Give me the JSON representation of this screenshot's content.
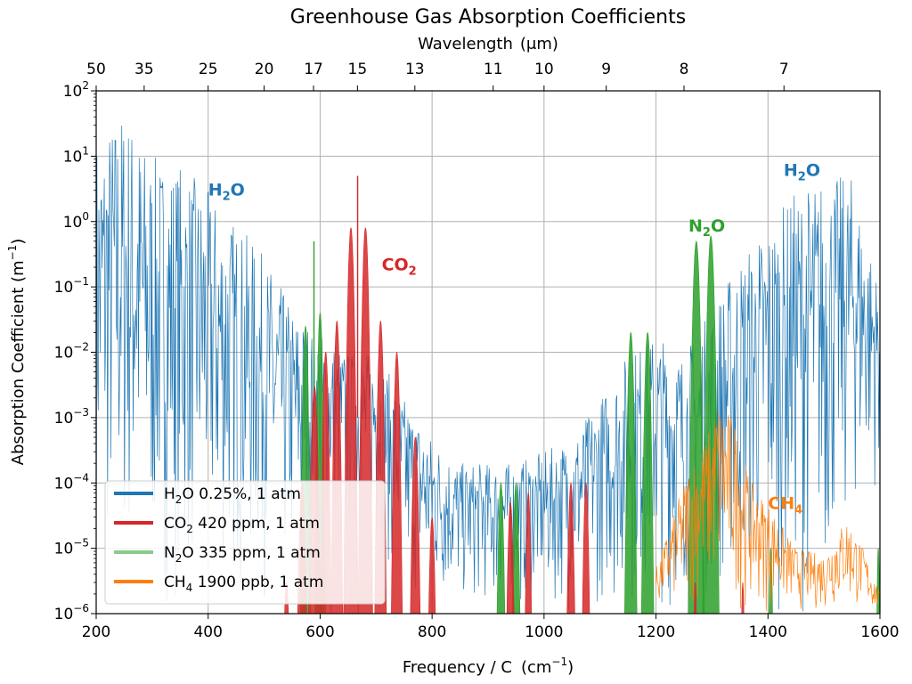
{
  "chart_data": {
    "type": "line",
    "title": "Greenhouse Gas Absorption Coefficients",
    "xlabel": "Frequency / C",
    "xlabel_unit": "(cm",
    "xlabel_unit_exp": "−1",
    "xlabel_unit_close": ")",
    "top_axis_label": "Wavelength",
    "top_axis_unit": "(μm)",
    "ylabel": "Absorption Coefficient (m",
    "ylabel_exp": "−1",
    "ylabel_close": ")",
    "xlim": [
      200,
      1600
    ],
    "ylim": [
      1e-06,
      100
    ],
    "yscale": "log",
    "grid": true,
    "legend_position": "lower-left",
    "x_ticks": [
      200,
      400,
      600,
      800,
      1000,
      1200,
      1400,
      1600
    ],
    "y_ticks": [
      {
        "base": "10",
        "exp": "−6",
        "value": 1e-06
      },
      {
        "base": "10",
        "exp": "−5",
        "value": 1e-05
      },
      {
        "base": "10",
        "exp": "−4",
        "value": 0.0001
      },
      {
        "base": "10",
        "exp": "−3",
        "value": 0.001
      },
      {
        "base": "10",
        "exp": "−2",
        "value": 0.01
      },
      {
        "base": "10",
        "exp": "−1",
        "value": 0.1
      },
      {
        "base": "10",
        "exp": "0",
        "value": 1
      },
      {
        "base": "10",
        "exp": "1",
        "value": 10
      },
      {
        "base": "10",
        "exp": "2",
        "value": 100
      }
    ],
    "top_ticks": [
      {
        "label": "50",
        "wavelength": 50
      },
      {
        "label": "35",
        "wavelength": 35
      },
      {
        "label": "25",
        "wavelength": 25
      },
      {
        "label": "20",
        "wavelength": 20
      },
      {
        "label": "17",
        "wavelength": 17
      },
      {
        "label": "15",
        "wavelength": 15
      },
      {
        "label": "13",
        "wavelength": 13
      },
      {
        "label": "11",
        "wavelength": 11
      },
      {
        "label": "10",
        "wavelength": 10
      },
      {
        "label": "9",
        "wavelength": 9
      },
      {
        "label": "8",
        "wavelength": 8
      },
      {
        "label": "7",
        "wavelength": 7
      }
    ],
    "series": [
      {
        "name": "H₂O 0.25%, 1 atm",
        "legend_parts": [
          "H",
          "2",
          "O 0.25%, 1 atm"
        ],
        "color": "#1f77b4",
        "style": "dense-line",
        "envelope": [
          {
            "x": 200,
            "top": 20,
            "floor": 1e-06
          },
          {
            "x": 250,
            "top": 60,
            "floor": 1e-06
          },
          {
            "x": 300,
            "top": 10,
            "floor": 1e-06
          },
          {
            "x": 350,
            "top": 8,
            "floor": 1e-06
          },
          {
            "x": 400,
            "top": 3,
            "floor": 1e-06
          },
          {
            "x": 450,
            "top": 1,
            "floor": 1e-06
          },
          {
            "x": 500,
            "top": 0.3,
            "floor": 1e-06
          },
          {
            "x": 550,
            "top": 0.05,
            "floor": 1e-06
          },
          {
            "x": 600,
            "top": 0.02,
            "floor": 1e-05
          },
          {
            "x": 650,
            "top": 0.01,
            "floor": 1e-05
          },
          {
            "x": 700,
            "top": 0.01,
            "floor": 1e-05
          },
          {
            "x": 750,
            "top": 0.002,
            "floor": 1e-06
          },
          {
            "x": 800,
            "top": 0.0005,
            "floor": 1e-06
          },
          {
            "x": 850,
            "top": 0.0002,
            "floor": 1e-06
          },
          {
            "x": 900,
            "top": 0.0002,
            "floor": 1e-06
          },
          {
            "x": 950,
            "top": 0.0002,
            "floor": 1e-06
          },
          {
            "x": 1000,
            "top": 0.0003,
            "floor": 1e-06
          },
          {
            "x": 1050,
            "top": 0.0005,
            "floor": 1e-06
          },
          {
            "x": 1100,
            "top": 0.002,
            "floor": 1e-06
          },
          {
            "x": 1150,
            "top": 0.01,
            "floor": 1e-06
          },
          {
            "x": 1200,
            "top": 0.02,
            "floor": 1e-06
          },
          {
            "x": 1250,
            "top": 0.01,
            "floor": 1e-06
          },
          {
            "x": 1300,
            "top": 0.05,
            "floor": 1e-06
          },
          {
            "x": 1350,
            "top": 0.3,
            "floor": 1e-06
          },
          {
            "x": 1400,
            "top": 1,
            "floor": 1e-06
          },
          {
            "x": 1450,
            "top": 3,
            "floor": 1e-06
          },
          {
            "x": 1500,
            "top": 5,
            "floor": 1e-06
          },
          {
            "x": 1550,
            "top": 5,
            "floor": 1e-05
          },
          {
            "x": 1600,
            "top": 0.1,
            "floor": 0.0001
          }
        ]
      },
      {
        "name": "CO₂ 420 ppm, 1 atm",
        "legend_parts": [
          "CO",
          "2",
          " 420 ppm, 1 atm"
        ],
        "color": "#d62728",
        "style": "band",
        "bands": [
          {
            "center": 540,
            "width": 12,
            "peak": 3e-06
          },
          {
            "center": 568,
            "width": 14,
            "peak": 0.0001
          },
          {
            "center": 590,
            "width": 14,
            "peak": 0.003
          },
          {
            "center": 610,
            "width": 12,
            "peak": 0.01
          },
          {
            "center": 630,
            "width": 12,
            "peak": 0.03
          },
          {
            "center": 655,
            "width": 13,
            "peak": 0.8
          },
          {
            "center": 681,
            "width": 13,
            "peak": 0.8
          },
          {
            "center": 708,
            "width": 12,
            "peak": 0.03
          },
          {
            "center": 737,
            "width": 12,
            "peak": 0.01
          },
          {
            "center": 770,
            "width": 13,
            "peak": 0.0005
          },
          {
            "center": 800,
            "width": 12,
            "peak": 3e-05
          },
          {
            "center": 940,
            "width": 12,
            "peak": 5e-05
          },
          {
            "center": 972,
            "width": 10,
            "peak": 7e-05
          },
          {
            "center": 1048,
            "width": 12,
            "peak": 0.0001
          },
          {
            "center": 1075,
            "width": 11,
            "peak": 0.0001
          },
          {
            "center": 1270,
            "width": 7,
            "peak": 3e-06
          },
          {
            "center": 1355,
            "width": 7,
            "peak": 3e-06
          }
        ],
        "spike": {
          "x": 667,
          "value": 5
        }
      },
      {
        "name": "N₂O 335 ppm, 1 atm",
        "legend_parts": [
          "N",
          "2",
          "O 335 ppm, 1 atm"
        ],
        "color": "#2ca02c",
        "style": "band",
        "bands": [
          {
            "center": 574,
            "width": 11,
            "peak": 0.025
          },
          {
            "center": 600,
            "width": 11,
            "peak": 0.04
          },
          {
            "center": 923,
            "width": 12,
            "peak": 0.0001
          },
          {
            "center": 950,
            "width": 12,
            "peak": 0.0001
          },
          {
            "center": 1155,
            "width": 13,
            "peak": 0.02
          },
          {
            "center": 1185,
            "width": 13,
            "peak": 0.02
          },
          {
            "center": 1272,
            "width": 15,
            "peak": 0.5
          },
          {
            "center": 1298,
            "width": 15,
            "peak": 0.6
          },
          {
            "center": 1405,
            "width": 8,
            "peak": 1e-05
          },
          {
            "center": 1597,
            "width": 6,
            "peak": 1e-05
          }
        ],
        "spike": {
          "x": 589,
          "value": 0.5
        }
      },
      {
        "name": "CH₄ 1900 ppb, 1 atm",
        "legend_parts": [
          "CH",
          "4",
          " 1900 ppb, 1 atm"
        ],
        "color": "#ff7f0e",
        "style": "dense-line",
        "envelope": [
          {
            "x": 1200,
            "top": 5e-06,
            "floor": 1e-06
          },
          {
            "x": 1230,
            "top": 3e-05,
            "floor": 1e-06
          },
          {
            "x": 1260,
            "top": 0.0002,
            "floor": 1e-06
          },
          {
            "x": 1290,
            "top": 0.0005,
            "floor": 1e-06
          },
          {
            "x": 1310,
            "top": 0.002,
            "floor": 1e-06
          },
          {
            "x": 1340,
            "top": 0.001,
            "floor": 1e-06
          },
          {
            "x": 1370,
            "top": 0.0001,
            "floor": 1e-06
          },
          {
            "x": 1400,
            "top": 5e-05,
            "floor": 1e-06
          },
          {
            "x": 1450,
            "top": 1e-05,
            "floor": 1e-06
          },
          {
            "x": 1500,
            "top": 8e-06,
            "floor": 1e-06
          },
          {
            "x": 1540,
            "top": 3e-05,
            "floor": 1e-06
          },
          {
            "x": 1570,
            "top": 1e-05,
            "floor": 1e-06
          },
          {
            "x": 1600,
            "top": 2e-06,
            "floor": 1e-06
          }
        ]
      }
    ],
    "annotations": [
      {
        "parts": [
          "H",
          "2",
          "O"
        ],
        "x": 400,
        "y": 2.5,
        "color": "#1f77b4"
      },
      {
        "parts": [
          "CO",
          "2",
          ""
        ],
        "x": 710,
        "y": 0.18,
        "color": "#d62728"
      },
      {
        "parts": [
          "N",
          "2",
          "O"
        ],
        "x": 1258,
        "y": 0.7,
        "color": "#2ca02c"
      },
      {
        "parts": [
          "H",
          "2",
          "O"
        ],
        "x": 1428,
        "y": 5,
        "color": "#1f77b4"
      },
      {
        "parts": [
          "CH",
          "4",
          ""
        ],
        "x": 1400,
        "y": 4e-05,
        "color": "#ff7f0e"
      }
    ]
  }
}
